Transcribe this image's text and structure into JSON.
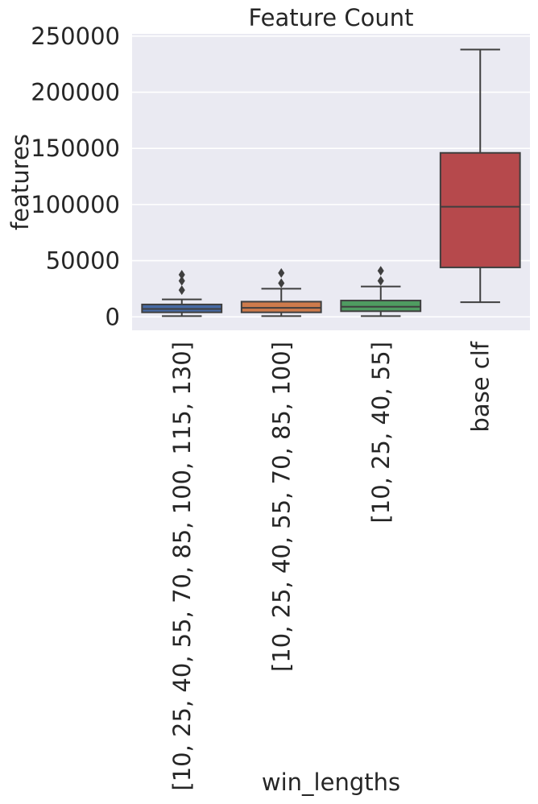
{
  "chart_data": {
    "type": "box",
    "title": "Feature Count",
    "xlabel": "win_lengths",
    "ylabel": "features",
    "ylim": [
      -12000,
      252000
    ],
    "yticks": [
      0,
      50000,
      100000,
      150000,
      200000,
      250000
    ],
    "ytick_labels": [
      "0",
      "50000",
      "100000",
      "150000",
      "200000",
      "250000"
    ],
    "grid": true,
    "categories": [
      "[10, 25, 40, 55, 70, 85, 100, 115, 130]",
      "[10, 25, 40, 55, 70, 85, 100]",
      "[10, 25, 40, 55]",
      "base clf"
    ],
    "colors": [
      "#4c72b0",
      "#dd8452",
      "#55a868",
      "#c44e52"
    ],
    "boxes": [
      {
        "whisker_low": 600,
        "q1": 4000,
        "median": 7000,
        "q3": 11000,
        "whisker_high": 15500,
        "outliers": [
          23800,
          32000,
          37500
        ]
      },
      {
        "whisker_low": 600,
        "q1": 4000,
        "median": 8000,
        "q3": 13500,
        "whisker_high": 25000,
        "outliers": [
          30000,
          39000
        ]
      },
      {
        "whisker_low": 600,
        "q1": 5000,
        "median": 9000,
        "q3": 14500,
        "whisker_high": 27000,
        "outliers": [
          32000,
          41000
        ]
      },
      {
        "whisker_low": 13000,
        "q1": 44000,
        "median": 98000,
        "q3": 146000,
        "whisker_high": 238000,
        "outliers": []
      }
    ]
  }
}
